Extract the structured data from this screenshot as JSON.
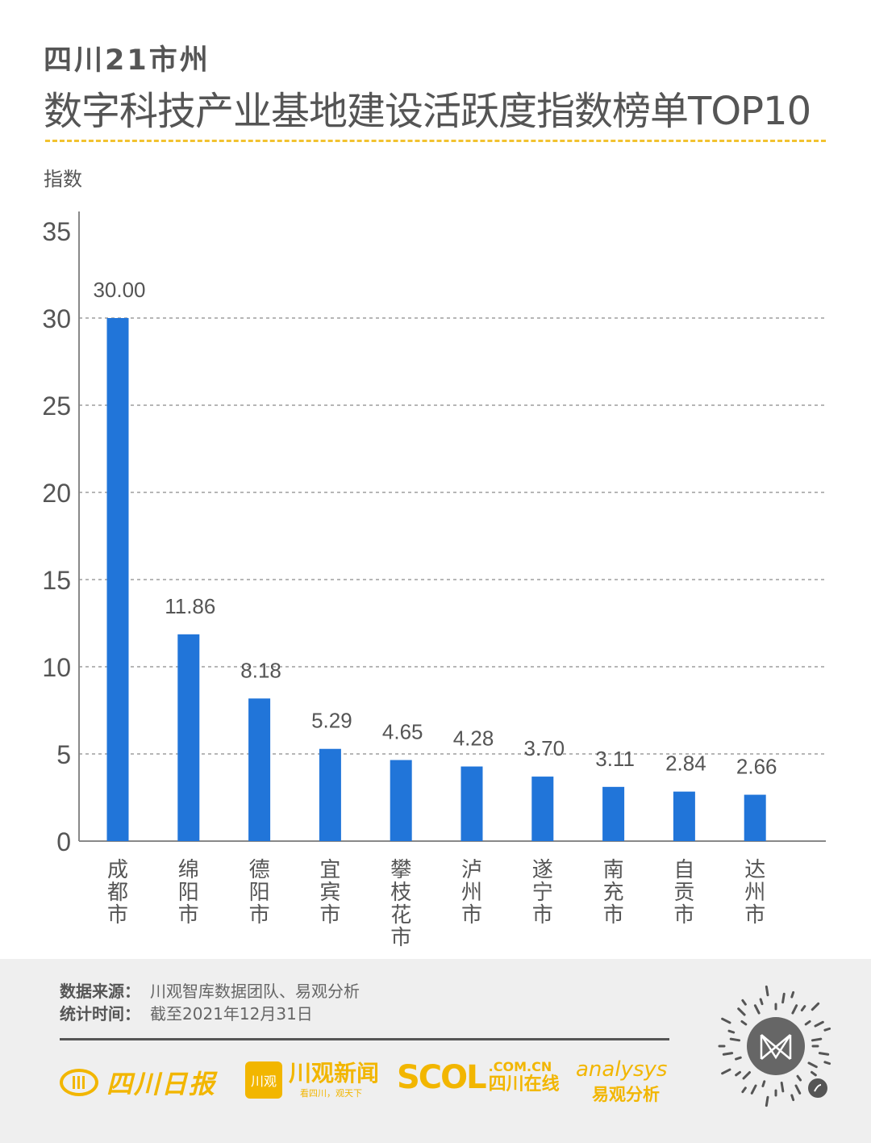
{
  "header": {
    "title_line1": "四川21市州",
    "title_line2": "数字科技产业基地建设活跃度指数榜单TOP10"
  },
  "chart_data": {
    "type": "bar",
    "title": "四川21市州 数字科技产业基地建设活跃度指数榜单TOP10",
    "ylabel": "指数",
    "xlabel": "",
    "ylim": [
      0,
      35
    ],
    "yticks": [
      0,
      5,
      10,
      15,
      20,
      25,
      30,
      35
    ],
    "grid": true,
    "categories": [
      "成都市",
      "绵阳市",
      "德阳市",
      "宜宾市",
      "攀枝花市",
      "泸州市",
      "遂宁市",
      "南充市",
      "自贡市",
      "达州市"
    ],
    "values": [
      30.0,
      11.86,
      8.18,
      5.29,
      4.65,
      4.28,
      3.7,
      3.11,
      2.84,
      2.66
    ],
    "value_labels": [
      "30.00",
      "11.86",
      "8.18",
      "5.29",
      "4.65",
      "4.28",
      "3.70",
      "3.11",
      "2.84",
      "2.66"
    ],
    "bar_color": "#2175d9"
  },
  "footer": {
    "source_label": "数据来源：",
    "source_value": "川观智库数据团队、易观分析",
    "time_label": "统计时间：",
    "time_value": "截至2021年12月31日"
  },
  "logos": {
    "scdaily": "四川日报",
    "cgnews_badge": "川观",
    "cgnews": "川观新闻",
    "cgnews_slogan": "看四川，观天下",
    "scol_big": "SCOL",
    "scol_domain": ".COM.CN",
    "scol_cn": "四川在线",
    "analysys_en": "analysys",
    "analysys_cn": "易观分析"
  },
  "colors": {
    "accent": "#f2b600",
    "divider": "#f2c230",
    "footer_bg": "#efefef"
  },
  "icons": {
    "qr": "mini-program-code-icon"
  }
}
